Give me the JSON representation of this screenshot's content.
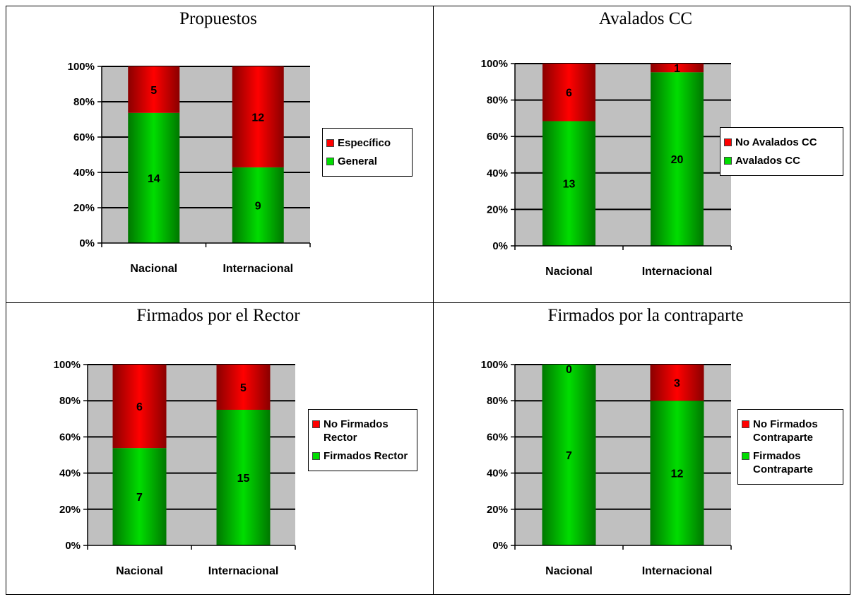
{
  "colors": {
    "plot_bg": "#c0c0c0",
    "green": "#00dd00",
    "green_dark": "#007700",
    "red": "#ff0000",
    "red_dark": "#8a0000"
  },
  "chart_data": [
    {
      "type": "bar",
      "stacked": "percent",
      "title": "Propuestos",
      "categories": [
        "Nacional",
        "Internacional"
      ],
      "series": [
        {
          "name": "General",
          "values": [
            14,
            9
          ],
          "color": "green"
        },
        {
          "name": "Específico",
          "values": [
            5,
            12
          ],
          "color": "red"
        }
      ],
      "yticks": [
        "0%",
        "20%",
        "40%",
        "60%",
        "80%",
        "100%"
      ],
      "ylim": [
        0,
        100
      ],
      "legend": "right"
    },
    {
      "type": "bar",
      "stacked": "percent",
      "title": "Avalados CC",
      "categories": [
        "Nacional",
        "Internacional"
      ],
      "series": [
        {
          "name": "Avalados CC",
          "values": [
            13,
            20
          ],
          "color": "green"
        },
        {
          "name": "No Avalados CC",
          "values": [
            6,
            1
          ],
          "color": "red"
        }
      ],
      "yticks": [
        "0%",
        "20%",
        "40%",
        "60%",
        "80%",
        "100%"
      ],
      "ylim": [
        0,
        100
      ],
      "legend": "right"
    },
    {
      "type": "bar",
      "stacked": "percent",
      "title": "Firmados por el Rector",
      "categories": [
        "Nacional",
        "Internacional"
      ],
      "series": [
        {
          "name": "Firmados Rector",
          "values": [
            7,
            15
          ],
          "color": "green"
        },
        {
          "name": "No Firmados Rector",
          "values": [
            6,
            5
          ],
          "color": "red"
        }
      ],
      "yticks": [
        "0%",
        "20%",
        "40%",
        "60%",
        "80%",
        "100%"
      ],
      "ylim": [
        0,
        100
      ],
      "legend": "right"
    },
    {
      "type": "bar",
      "stacked": "percent",
      "title": "Firmados por la contraparte",
      "categories": [
        "Nacional",
        "Internacional"
      ],
      "series": [
        {
          "name": "Firmados Contraparte",
          "values": [
            7,
            12
          ],
          "color": "green"
        },
        {
          "name": "No Firmados Contraparte",
          "values": [
            0,
            3
          ],
          "color": "red"
        }
      ],
      "yticks": [
        "0%",
        "20%",
        "40%",
        "60%",
        "80%",
        "100%"
      ],
      "ylim": [
        0,
        100
      ],
      "legend": "right"
    }
  ]
}
